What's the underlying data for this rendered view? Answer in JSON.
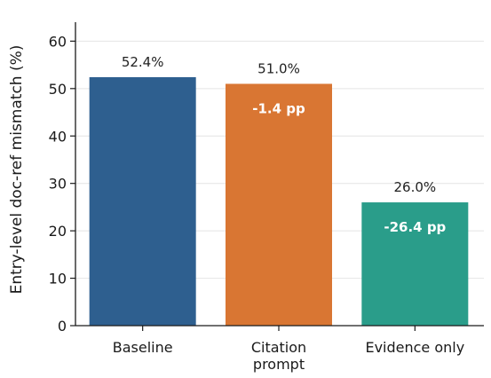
{
  "chart_data": {
    "type": "bar",
    "title": "",
    "xlabel": "",
    "ylabel": "Entry-level doc-ref mismatch (%)",
    "ylim": [
      0,
      64
    ],
    "yticks": [
      0,
      10,
      20,
      30,
      40,
      50,
      60
    ],
    "grid": "horizontal",
    "categories": [
      [
        "Baseline"
      ],
      [
        "Citation",
        "prompt"
      ],
      [
        "Evidence only"
      ]
    ],
    "values": [
      52.4,
      51.0,
      26.0
    ],
    "value_labels": [
      "52.4%",
      "51.0%",
      "26.0%"
    ],
    "delta_labels": [
      "",
      "-1.4 pp",
      "-26.4 pp"
    ],
    "colors": [
      "#2e5f8f",
      "#d97633",
      "#2a9d8a"
    ]
  }
}
